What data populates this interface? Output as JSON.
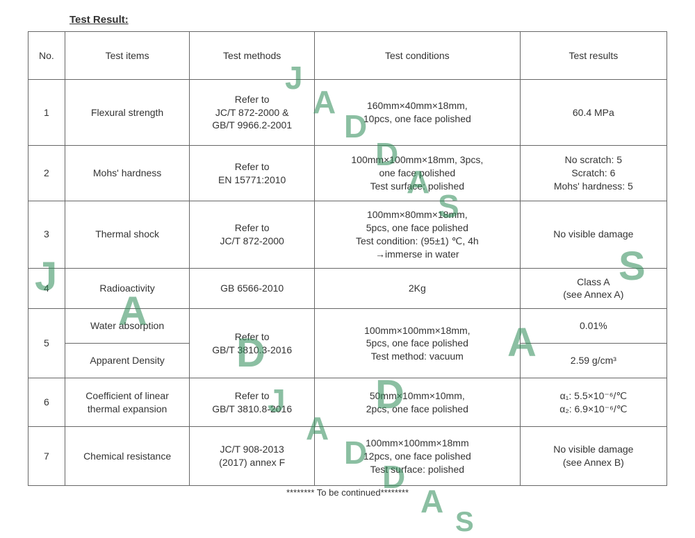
{
  "title": "Test Result:",
  "headers": {
    "no": "No.",
    "items": "Test items",
    "methods": "Test methods",
    "conditions": "Test conditions",
    "results": "Test results"
  },
  "rows": {
    "r1": {
      "no": "1",
      "item": "Flexural strength",
      "method": "Refer to\nJC/T 872-2000 &\nGB/T 9966.2-2001",
      "cond": "160mm×40mm×18mm,\n10pcs, one face polished",
      "res": "60.4 MPa"
    },
    "r2": {
      "no": "2",
      "item": "Mohs' hardness",
      "method": "Refer to\nEN 15771:2010",
      "cond": "100mm×100mm×18mm, 3pcs,\none face polished\nTest surface:  polished",
      "res": "No scratch: 5\nScratch: 6\nMohs' hardness: 5"
    },
    "r3": {
      "no": "3",
      "item": "Thermal shock",
      "method": "Refer to\nJC/T 872-2000",
      "cond": "100mm×80mm×18mm,\n5pcs, one face polished\nTest condition: (95±1) ℃, 4h\n→immerse in water",
      "res": "No visible damage"
    },
    "r4": {
      "no": "4",
      "item": "Radioactivity",
      "method": "GB 6566-2010",
      "cond": "2Kg",
      "res": "Class A\n(see Annex A)"
    },
    "r5": {
      "no": "5",
      "item_a": "Water absorption",
      "item_b": "Apparent Density",
      "method": "Refer to\nGB/T 3810.3-2016",
      "cond": "100mm×100mm×18mm,\n5pcs, one face polished\nTest method:  vacuum",
      "res_a": "0.01%",
      "res_b": "2.59 g/cm³"
    },
    "r6": {
      "no": "6",
      "item": "Coefficient of linear thermal expansion",
      "method": "Refer to\nGB/T 3810.8-2016",
      "cond": "50mm×10mm×10mm,\n2pcs, one face polished",
      "res": "α₁: 5.5×10⁻⁶/℃\nα₂: 6.9×10⁻⁶/℃"
    },
    "r7": {
      "no": "7",
      "item": "Chemical resistance",
      "method": "JC/T 908-2013\n(2017) annex F",
      "cond": "100mm×100mm×18mm\n12pcs, one face polished\nTest surface: polished",
      "res": "No visible damage\n(see Annex B)"
    }
  },
  "footer": "******** To be continued********",
  "watermark": {
    "text": "JADDAS",
    "color": "#3a9e5f",
    "opacity": 0.55
  }
}
